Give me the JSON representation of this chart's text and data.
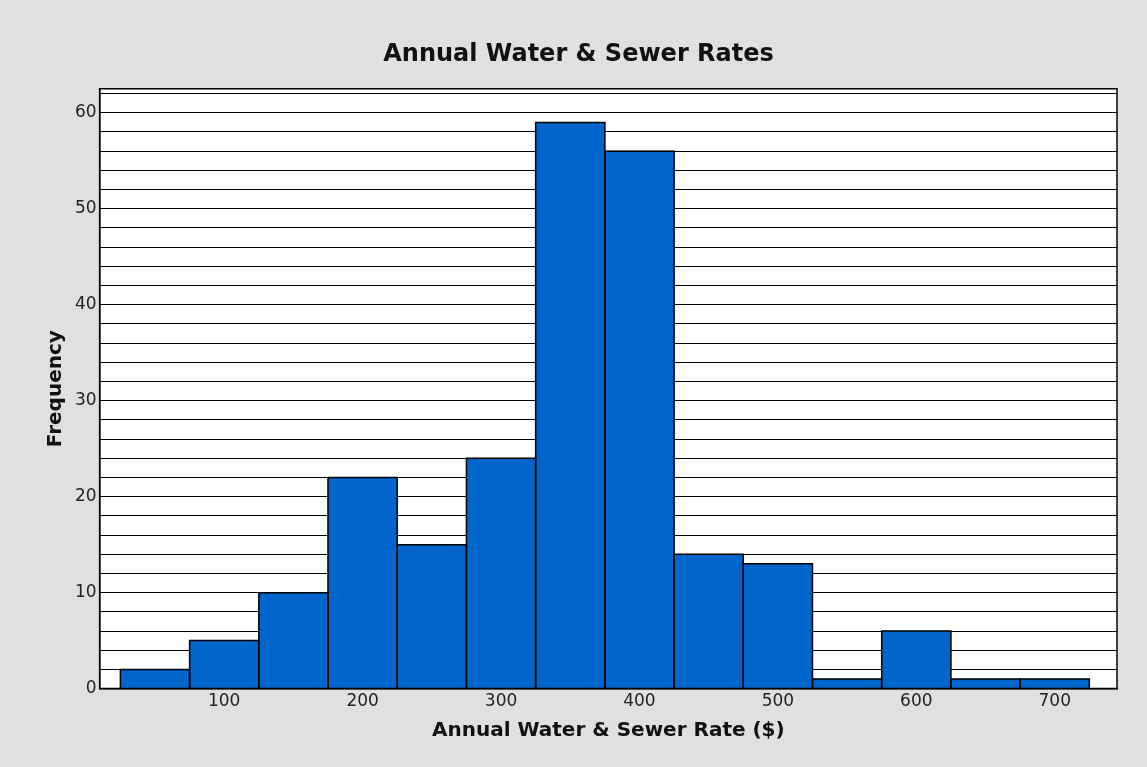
{
  "chart_data": {
    "type": "histogram",
    "title": "Annual Water & Sewer Rates",
    "xlabel": "Annual Water & Sewer Rate ($)",
    "ylabel": "Frequency",
    "bins": [
      25,
      75,
      125,
      175,
      225,
      275,
      325,
      375,
      425,
      475,
      525,
      575,
      625,
      675,
      725
    ],
    "values": [
      2,
      5,
      10,
      22,
      15,
      24,
      59,
      56,
      14,
      13,
      1,
      6,
      1,
      1
    ],
    "color": "#0066cc",
    "xlim": [
      10,
      745
    ],
    "xticks": [
      100,
      200,
      300,
      400,
      500,
      600,
      700
    ],
    "ylim": [
      0,
      62.5
    ],
    "yticks": [
      0,
      {
        "value": 2,
        "label": null
      },
      {
        "value": 4,
        "label": null
      },
      {
        "value": 6,
        "label": null
      },
      {
        "value": 8,
        "label": null
      },
      10,
      {
        "value": 12,
        "label": null
      },
      {
        "value": 14,
        "label": null
      },
      {
        "value": 16,
        "label": null
      },
      {
        "value": 18,
        "label": null
      },
      20,
      {
        "value": 22,
        "label": null
      },
      {
        "value": 24,
        "label": null
      },
      {
        "value": 26,
        "label": null
      },
      {
        "value": 28,
        "label": null
      },
      30,
      {
        "value": 32,
        "label": null
      },
      {
        "value": 34,
        "label": null
      },
      {
        "value": 36,
        "label": null
      },
      {
        "value": 38,
        "label": null
      },
      40,
      {
        "value": 42,
        "label": null
      },
      {
        "value": 44,
        "label": null
      },
      {
        "value": 46,
        "label": null
      },
      {
        "value": 48,
        "label": null
      },
      50,
      {
        "value": 52,
        "label": null
      },
      {
        "value": 54,
        "label": null
      },
      {
        "value": 56,
        "label": null
      },
      {
        "value": 58,
        "label": null
      },
      60,
      {
        "value": 62,
        "label": null
      }
    ],
    "grid": "y",
    "legend": false
  }
}
